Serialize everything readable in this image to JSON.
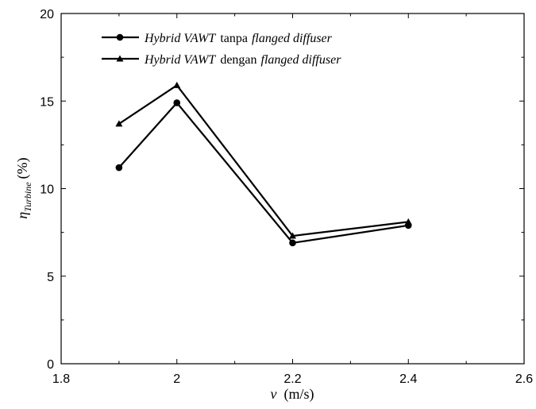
{
  "chart_data": {
    "type": "line",
    "x_label_symbol": "v",
    "x_label_unit": "(m/s)",
    "y_label_symbol": "η",
    "y_label_subscript": "Turbine",
    "y_label_unit": "(%)",
    "xlim": [
      1.8,
      2.6
    ],
    "ylim": [
      0,
      20
    ],
    "x_ticks": [
      "1.8",
      "2",
      "2.2",
      "2.4",
      "2.6"
    ],
    "y_ticks": [
      "0",
      "5",
      "10",
      "15",
      "20"
    ],
    "grid": false,
    "legend_position": "top-left",
    "series": [
      {
        "name": "Hybrid VAWT tanpa flanged diffuser",
        "legend": {
          "italic1": "Hybrid VAWT",
          "plain": "tanpa",
          "italic2": "flanged diffuser"
        },
        "marker": "circle",
        "x": [
          1.9,
          2.0,
          2.2,
          2.4
        ],
        "y": [
          11.2,
          14.9,
          6.9,
          7.9
        ]
      },
      {
        "name": "Hybrid VAWT dengan flanged diffuser",
        "legend": {
          "italic1": "Hybrid VAWT",
          "plain": "dengan",
          "italic2": "flanged diffuser"
        },
        "marker": "triangle",
        "x": [
          1.9,
          2.0,
          2.2,
          2.4
        ],
        "y": [
          13.7,
          15.9,
          7.3,
          8.1
        ]
      }
    ]
  },
  "colors": {
    "line": "#000000",
    "axis": "#000000",
    "background": "#ffffff"
  }
}
